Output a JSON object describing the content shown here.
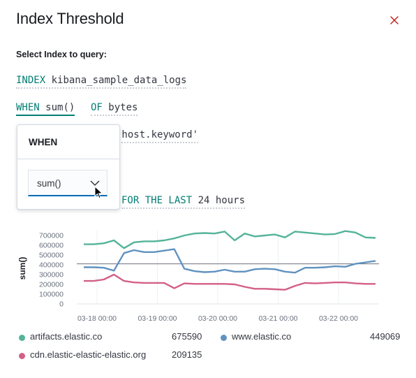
{
  "header": {
    "title": "Index Threshold"
  },
  "section": {
    "label": "Select Index to query:"
  },
  "expressions": {
    "index": {
      "keyword": "INDEX",
      "value": "kibana_sample_data_logs"
    },
    "when": {
      "keyword": "WHEN",
      "value": "sum()"
    },
    "of": {
      "keyword": "OF",
      "value": "bytes"
    },
    "group": {
      "value": "'host.keyword'"
    },
    "for_last": {
      "keyword": "FOR THE LAST",
      "value": "24 hours"
    }
  },
  "popover": {
    "title": "WHEN",
    "select": {
      "value": "sum()"
    }
  },
  "colors": {
    "keyword": "#017d73",
    "series1": "#54b399",
    "series2": "#6092c0",
    "series3": "#d36086",
    "threshold": "#6a717d"
  },
  "icons": {
    "close": "close-icon",
    "chevron": "chevron-down-icon",
    "cursor": "mouse-pointer-icon"
  },
  "chart_data": {
    "type": "line",
    "ylabel": "sum()",
    "xlabel": "",
    "ylim": [
      0,
      750000
    ],
    "yticks": [
      "700000",
      "600000",
      "500000",
      "400000",
      "300000",
      "200000",
      "100000",
      "0"
    ],
    "xticks": [
      "03-18 00:00",
      "03-19 00:00",
      "03-20 00:00",
      "03-21 00:00",
      "03-22 00:00"
    ],
    "grid": "vertical",
    "legend": "bottom",
    "threshold": 410000,
    "series": [
      {
        "name": "artifacts.elastic.co",
        "total": "675590",
        "values": [
          610000,
          610000,
          620000,
          650000,
          570000,
          630000,
          640000,
          640000,
          650000,
          670000,
          700000,
          720000,
          725000,
          720000,
          740000,
          650000,
          720000,
          690000,
          700000,
          710000,
          680000,
          740000,
          730000,
          720000,
          710000,
          715000,
          745000,
          730000,
          680000,
          675000
        ]
      },
      {
        "name": "www.elastic.co",
        "total": "449069",
        "values": [
          375000,
          375000,
          370000,
          340000,
          520000,
          550000,
          530000,
          530000,
          545000,
          560000,
          360000,
          335000,
          325000,
          330000,
          350000,
          330000,
          330000,
          355000,
          360000,
          355000,
          330000,
          320000,
          370000,
          370000,
          375000,
          385000,
          380000,
          410000,
          425000,
          440000
        ]
      },
      {
        "name": "cdn.elastic-elastic-elastic.org",
        "total": "209135",
        "values": [
          235000,
          235000,
          250000,
          300000,
          235000,
          220000,
          215000,
          215000,
          215000,
          160000,
          210000,
          205000,
          205000,
          205000,
          205000,
          200000,
          175000,
          155000,
          155000,
          150000,
          145000,
          185000,
          215000,
          210000,
          215000,
          220000,
          220000,
          210000,
          205000,
          205000
        ]
      }
    ]
  }
}
